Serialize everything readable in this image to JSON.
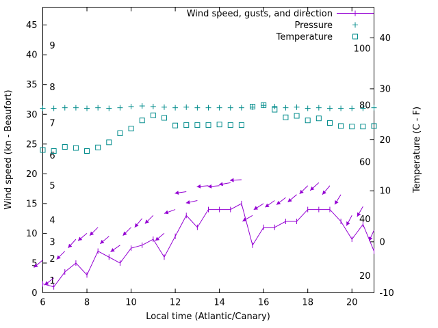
{
  "figure": {
    "background": "#ffffff",
    "border_color": "#000000",
    "text_color": "#000000"
  },
  "chart_data": {
    "type": "line",
    "title": "",
    "xlabel": "Local time (Atlantic/Canary)",
    "ylabel_left": "Wind speed (kn - Beaufort)",
    "ylabel_right": "Temperature (C - F)",
    "legend": [
      "Wind speed, gusts, and direction",
      "Pressure",
      "Temperature"
    ],
    "legend_position": "top-right-inside",
    "grid": false,
    "x_range": [
      6,
      21
    ],
    "y_left_range": [
      0,
      48
    ],
    "y_right_range": [
      -10,
      46
    ],
    "x_ticks": [
      6,
      8,
      10,
      12,
      14,
      16,
      18,
      20
    ],
    "y_left_ticks": [
      0,
      5,
      10,
      15,
      20,
      25,
      30,
      35,
      40,
      45
    ],
    "y_right_ticks": [
      -10,
      0,
      10,
      20,
      30,
      40
    ],
    "beaufort_inner_labels": [
      {
        "label": "1",
        "kn": 2
      },
      {
        "label": "2",
        "kn": 5.7
      },
      {
        "label": "3",
        "kn": 8.5
      },
      {
        "label": "4",
        "kn": 12.2
      },
      {
        "label": "5",
        "kn": 18
      },
      {
        "label": "6",
        "kn": 23
      },
      {
        "label": "7",
        "kn": 28.5
      },
      {
        "label": "8",
        "kn": 34.5
      },
      {
        "label": "9",
        "kn": 41.5
      }
    ],
    "fahrenheit_inner_labels": [
      {
        "label": "20",
        "c": -6.7
      },
      {
        "label": "40",
        "c": 4.4
      },
      {
        "label": "60",
        "c": 15.6
      },
      {
        "label": "80",
        "c": 26.7
      },
      {
        "label": "100",
        "c": 37.8
      }
    ],
    "x": [
      6,
      6.5,
      7,
      7.5,
      8,
      8.5,
      9,
      9.5,
      10,
      10.5,
      11,
      11.5,
      12,
      12.5,
      13,
      13.5,
      14,
      14.5,
      15,
      15.5,
      16,
      16.5,
      17,
      17.5,
      18,
      18.5,
      19,
      19.5,
      20,
      20.5,
      21
    ],
    "series": [
      {
        "name": "Wind speed (kn)",
        "style": "line-with-tick-markers",
        "axis": "left",
        "color": "#9400d3",
        "values": [
          1.5,
          1,
          3.5,
          5,
          3,
          7,
          6,
          5,
          7.5,
          8,
          9,
          6,
          9.5,
          13,
          11,
          14,
          14,
          14,
          15,
          8,
          11,
          11,
          12,
          12,
          14,
          14,
          14,
          12,
          9,
          11.5,
          7
        ]
      },
      {
        "name": "Wind gusts and direction (kn, arrow points downwind)",
        "style": "vectors",
        "axis": "left",
        "color": "#9400d3",
        "values": [
          5.5,
          2.5,
          7,
          9,
          10,
          11,
          9.5,
          8,
          11,
          12.5,
          13,
          10,
          14,
          17,
          15.5,
          18,
          18,
          18.5,
          19,
          13,
          15,
          15.5,
          16,
          16.5,
          18,
          18.5,
          18,
          16.5,
          13,
          14.5,
          10.5
        ],
        "angles_deg_screen": [
          140,
          142,
          135,
          132,
          140,
          135,
          140,
          145,
          135,
          130,
          135,
          140,
          160,
          172,
          168,
          175,
          175,
          170,
          177,
          150,
          148,
          145,
          142,
          140,
          135,
          138,
          130,
          122,
          118,
          120,
          115
        ]
      },
      {
        "name": "Pressure",
        "style": "points-plus",
        "axis": "left",
        "color": "#008b8b",
        "values": [
          31,
          31,
          31.1,
          31.1,
          31,
          31.1,
          31,
          31.1,
          31.3,
          31.4,
          31.3,
          31.2,
          31.1,
          31.2,
          31.1,
          31.1,
          31.1,
          31.1,
          31.1,
          31.2,
          31.5,
          31.3,
          31.1,
          31.2,
          31,
          31.1,
          31,
          31,
          31,
          31,
          31.1
        ]
      },
      {
        "name": "Temperature (C)",
        "style": "points-open-square",
        "axis": "right",
        "color": "#008b8b",
        "values": [
          18,
          17.8,
          18.6,
          18.4,
          17.8,
          18.5,
          19.5,
          21.3,
          22.2,
          23.8,
          24.8,
          24.3,
          22.8,
          22.9,
          22.9,
          22.9,
          23,
          22.9,
          22.9,
          26.5,
          26.8,
          25.9,
          24.4,
          24.7,
          23.8,
          24.2,
          23.3,
          22.7,
          22.6,
          22.6,
          22.7
        ]
      }
    ]
  }
}
